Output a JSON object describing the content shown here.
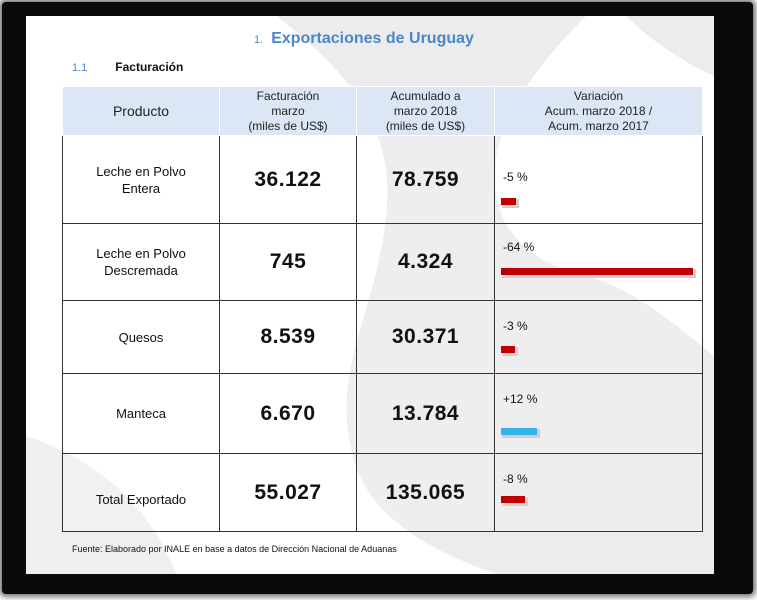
{
  "section": {
    "number": "1.",
    "title": "Exportaciones de Uruguay"
  },
  "subsection": {
    "number": "1.1",
    "title": "Facturación"
  },
  "table": {
    "headers": {
      "producto": "Producto",
      "facturacion_l1": "Facturación",
      "facturacion_l2": "marzo",
      "facturacion_l3": "(miles de US$)",
      "acumulado_l1": "Acumulado a",
      "acumulado_l2": "marzo 2018",
      "acumulado_l3": "(miles de US$)",
      "variacion_l1": "Variación",
      "variacion_l2": "Acum. marzo 2018 /",
      "variacion_l3": "Acum. marzo 2017"
    },
    "rows": [
      {
        "name_l1": "Leche en Polvo",
        "name_l2": "Entera",
        "facturacion": "36.122",
        "acumulado": "78.759",
        "variacion": "-5 %",
        "variacion_value": -5
      },
      {
        "name_l1": "Leche en Polvo",
        "name_l2": "Descremada",
        "facturacion": "745",
        "acumulado": "4.324",
        "variacion": "-64 %",
        "variacion_value": -64
      },
      {
        "name_l1": "Quesos",
        "name_l2": "",
        "facturacion": "8.539",
        "acumulado": "30.371",
        "variacion": "-3 %",
        "variacion_value": -3
      },
      {
        "name_l1": "Manteca",
        "name_l2": "",
        "facturacion": "6.670",
        "acumulado": "13.784",
        "variacion": "+12 %",
        "variacion_value": 12
      },
      {
        "name_l1": "Total Exportado",
        "name_l2": "",
        "facturacion": "55.027",
        "acumulado": "135.065",
        "variacion": "-8 %",
        "variacion_value": -8
      }
    ]
  },
  "source": "Fuente: Elaborado por INALE en base a datos de Dirección Nacional de Aduanas",
  "colors": {
    "negative": "#c00000",
    "positive": "#33b5e5",
    "heading": "#4a86c8",
    "header_bg": "#dbe7f5"
  }
}
